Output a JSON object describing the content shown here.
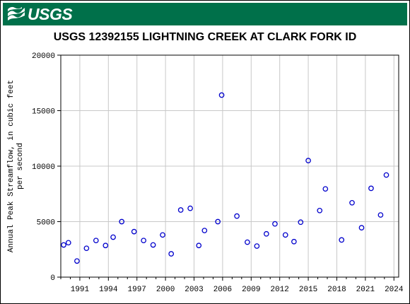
{
  "header": {
    "logo_text": "USGS"
  },
  "chart_data": {
    "type": "scatter",
    "title": "USGS 12392155 LIGHTNING CREEK AT CLARK FORK ID",
    "xlabel": "",
    "ylabel_lines": [
      "Annual Peak Streamflow, in cubic feet",
      "per second"
    ],
    "xlim": [
      1989,
      2024.5
    ],
    "ylim": [
      0,
      20000
    ],
    "x_ticks": [
      1991,
      1994,
      1997,
      2000,
      2003,
      2006,
      2009,
      2012,
      2015,
      2018,
      2021,
      2024
    ],
    "y_ticks": [
      0,
      5000,
      10000,
      15000,
      20000
    ],
    "grid": true,
    "marker_color": "#0000cc",
    "series": [
      {
        "points": [
          [
            1989.3,
            2900
          ],
          [
            1989.8,
            3100
          ],
          [
            1990.7,
            1450
          ],
          [
            1991.7,
            2600
          ],
          [
            1992.7,
            3300
          ],
          [
            1993.7,
            2850
          ],
          [
            1994.5,
            3600
          ],
          [
            1995.4,
            5000
          ],
          [
            1996.7,
            4100
          ],
          [
            1997.7,
            3300
          ],
          [
            1998.7,
            2900
          ],
          [
            1999.7,
            3800
          ],
          [
            2000.6,
            2100
          ],
          [
            2001.6,
            6050
          ],
          [
            2002.6,
            6200
          ],
          [
            2003.5,
            2850
          ],
          [
            2004.1,
            4200
          ],
          [
            2005.5,
            5000
          ],
          [
            2005.9,
            16400
          ],
          [
            2007.5,
            5500
          ],
          [
            2008.6,
            3150
          ],
          [
            2009.6,
            2800
          ],
          [
            2010.6,
            3900
          ],
          [
            2011.5,
            4800
          ],
          [
            2012.6,
            3800
          ],
          [
            2013.5,
            3200
          ],
          [
            2014.2,
            4950
          ],
          [
            2015.0,
            10500
          ],
          [
            2016.2,
            6000
          ],
          [
            2016.8,
            7950
          ],
          [
            2018.5,
            3350
          ],
          [
            2019.6,
            6700
          ],
          [
            2020.6,
            4450
          ],
          [
            2021.6,
            8000
          ],
          [
            2022.6,
            5600
          ],
          [
            2023.2,
            9200
          ]
        ]
      }
    ]
  }
}
